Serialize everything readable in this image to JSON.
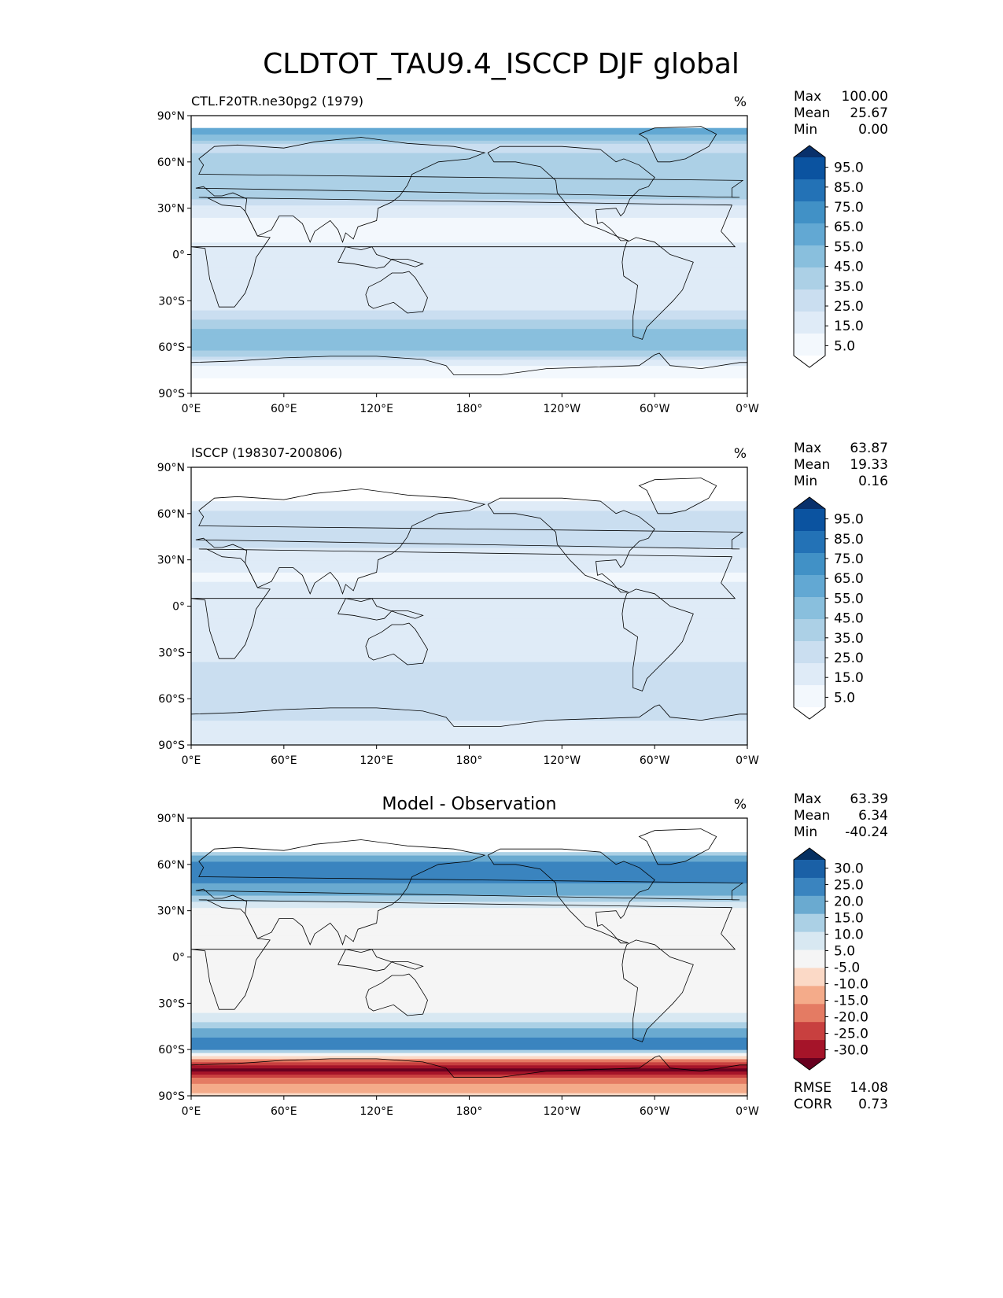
{
  "figure": {
    "title": "CLDTOT_TAU9.4_ISCCP DJF global",
    "lat_ticks": [
      "90°N",
      "60°N",
      "30°N",
      "0°",
      "30°S",
      "60°S",
      "90°S"
    ],
    "lon_ticks": [
      "0°E",
      "60°E",
      "120°E",
      "180°",
      "120°W",
      "60°W",
      "0°W"
    ]
  },
  "colors": {
    "sequential": [
      "#ffffff",
      "#f3f8fd",
      "#dfebf7",
      "#cadef0",
      "#acd0e6",
      "#89bfdd",
      "#62a8d3",
      "#4191c6",
      "#2372b6",
      "#0b53a0",
      "#08306b"
    ],
    "diverging": [
      "#67001f",
      "#a51429",
      "#c8403f",
      "#e47b63",
      "#f4ab8a",
      "#fbd9c6",
      "#f5f5f5",
      "#d8e8f2",
      "#abd0e5",
      "#6aaad0",
      "#3a84bf",
      "#1a60a6",
      "#053061"
    ],
    "coast": "#000000"
  },
  "chart_data": [
    {
      "type": "heatmap",
      "subtitle_left": "CTL.F20TR.ne30pg2 (1979)",
      "subtitle_center": "",
      "units": "%",
      "stats": [
        {
          "label": "Max",
          "value": "100.00"
        },
        {
          "label": "Mean",
          "value": "25.67"
        },
        {
          "label": "Min",
          "value": "0.00"
        }
      ],
      "colorbar": {
        "palette": "sequential",
        "tick_labels": [
          "95.0",
          "85.0",
          "75.0",
          "65.0",
          "55.0",
          "45.0",
          "35.0",
          "25.0",
          "15.0",
          "5.0"
        ],
        "levels": [
          0,
          5,
          15,
          25,
          35,
          45,
          55,
          65,
          75,
          85,
          95,
          100
        ]
      },
      "xlim": [
        0,
        360
      ],
      "ylim": [
        -90,
        90
      ],
      "data_lat_range": [
        -90,
        82
      ],
      "zonal_profile": [
        {
          "lat": -90,
          "value": 4
        },
        {
          "lat": -80,
          "value": 4
        },
        {
          "lat": -70,
          "value": 18
        },
        {
          "lat": -60,
          "value": 55
        },
        {
          "lat": -50,
          "value": 48
        },
        {
          "lat": -40,
          "value": 30
        },
        {
          "lat": -30,
          "value": 18
        },
        {
          "lat": -20,
          "value": 16
        },
        {
          "lat": -10,
          "value": 20
        },
        {
          "lat": 0,
          "value": 22
        },
        {
          "lat": 10,
          "value": 14
        },
        {
          "lat": 20,
          "value": 10
        },
        {
          "lat": 30,
          "value": 22
        },
        {
          "lat": 40,
          "value": 42
        },
        {
          "lat": 50,
          "value": 45
        },
        {
          "lat": 60,
          "value": 40
        },
        {
          "lat": 70,
          "value": 30
        },
        {
          "lat": 80,
          "value": 60
        }
      ]
    },
    {
      "type": "heatmap",
      "subtitle_left": "ISCCP (198307-200806)",
      "subtitle_center": "",
      "units": "%",
      "stats": [
        {
          "label": "Max",
          "value": "63.87"
        },
        {
          "label": "Mean",
          "value": "19.33"
        },
        {
          "label": "Min",
          "value": "0.16"
        }
      ],
      "colorbar": {
        "palette": "sequential",
        "tick_labels": [
          "95.0",
          "85.0",
          "75.0",
          "65.0",
          "55.0",
          "45.0",
          "35.0",
          "25.0",
          "15.0",
          "5.0"
        ],
        "levels": [
          0,
          5,
          15,
          25,
          35,
          45,
          55,
          65,
          75,
          85,
          95,
          100
        ]
      },
      "xlim": [
        0,
        360
      ],
      "ylim": [
        -90,
        90
      ],
      "data_lat_range": [
        -90,
        68
      ],
      "zonal_profile": [
        {
          "lat": -90,
          "value": 15
        },
        {
          "lat": -80,
          "value": 20
        },
        {
          "lat": -70,
          "value": 28
        },
        {
          "lat": -60,
          "value": 35
        },
        {
          "lat": -50,
          "value": 32
        },
        {
          "lat": -40,
          "value": 28
        },
        {
          "lat": -30,
          "value": 20
        },
        {
          "lat": -20,
          "value": 18
        },
        {
          "lat": -10,
          "value": 20
        },
        {
          "lat": 0,
          "value": 22
        },
        {
          "lat": 10,
          "value": 16
        },
        {
          "lat": 20,
          "value": 14
        },
        {
          "lat": 30,
          "value": 20
        },
        {
          "lat": 40,
          "value": 26
        },
        {
          "lat": 50,
          "value": 28
        },
        {
          "lat": 60,
          "value": 26
        },
        {
          "lat": 68,
          "value": 20
        }
      ]
    },
    {
      "type": "heatmap",
      "subtitle_left": "",
      "subtitle_center": "Model - Observation",
      "units": "%",
      "stats": [
        {
          "label": "Max",
          "value": "63.39"
        },
        {
          "label": "Mean",
          "value": "6.34"
        },
        {
          "label": "Min",
          "value": "-40.24"
        }
      ],
      "extra_stats": [
        {
          "label": "RMSE",
          "value": "14.08"
        },
        {
          "label": "CORR",
          "value": "0.73"
        }
      ],
      "colorbar": {
        "palette": "diverging",
        "tick_labels": [
          "30.0",
          "25.0",
          "20.0",
          "15.0",
          "10.0",
          "5.0",
          "-5.0",
          "-10.0",
          "-15.0",
          "-20.0",
          "-25.0",
          "-30.0"
        ],
        "levels": [
          -35,
          -30,
          -25,
          -20,
          -15,
          -10,
          -5,
          5,
          10,
          15,
          20,
          25,
          30,
          35
        ]
      },
      "xlim": [
        0,
        360
      ],
      "ylim": [
        -90,
        90
      ],
      "data_lat_range": [
        -90,
        68
      ],
      "zonal_profile": [
        {
          "lat": -90,
          "value": -8
        },
        {
          "lat": -80,
          "value": -18
        },
        {
          "lat": -72,
          "value": -32
        },
        {
          "lat": -65,
          "value": -10
        },
        {
          "lat": -58,
          "value": 25
        },
        {
          "lat": -50,
          "value": 18
        },
        {
          "lat": -40,
          "value": 8
        },
        {
          "lat": -30,
          "value": 0
        },
        {
          "lat": -20,
          "value": 0
        },
        {
          "lat": -10,
          "value": 3
        },
        {
          "lat": 0,
          "value": 2
        },
        {
          "lat": 10,
          "value": 0
        },
        {
          "lat": 20,
          "value": 0
        },
        {
          "lat": 30,
          "value": 3
        },
        {
          "lat": 40,
          "value": 15
        },
        {
          "lat": 50,
          "value": 22
        },
        {
          "lat": 60,
          "value": 25
        },
        {
          "lat": 68,
          "value": 10
        }
      ]
    }
  ]
}
